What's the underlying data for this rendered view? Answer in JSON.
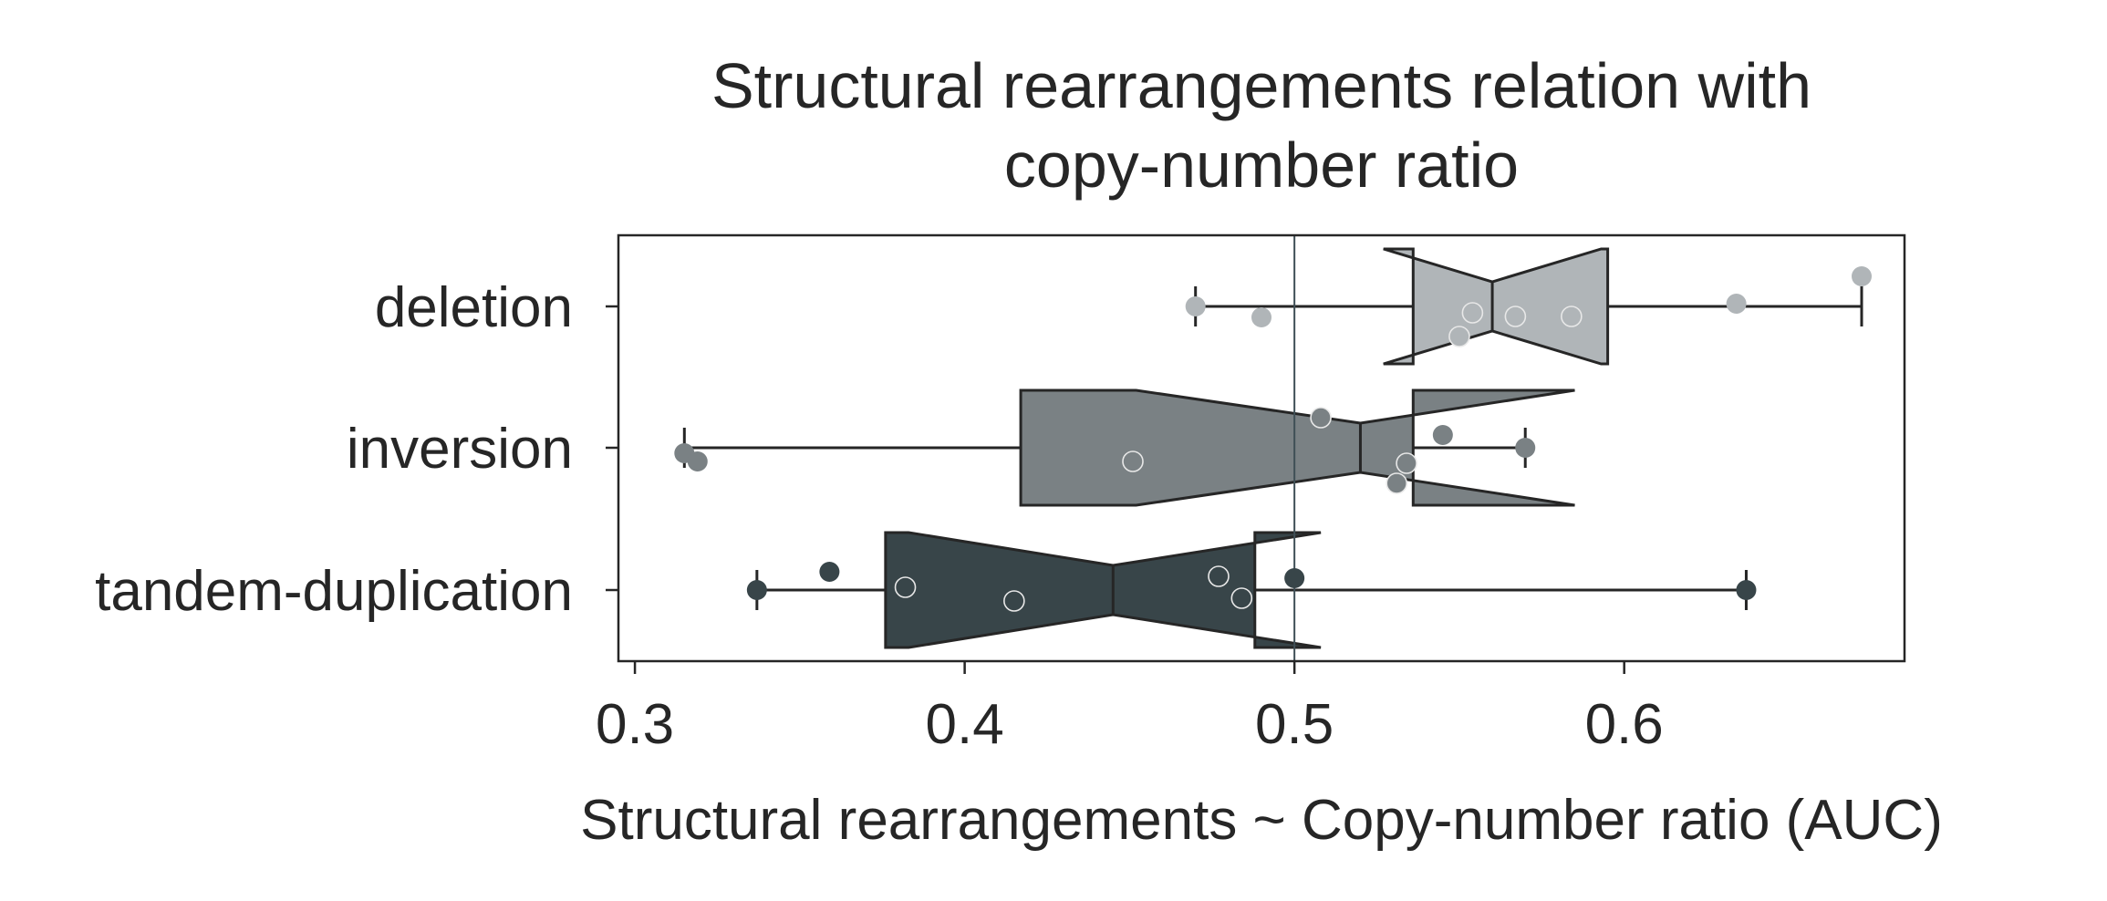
{
  "chart_data": {
    "type": "boxplot",
    "orientation": "horizontal",
    "notched": true,
    "title": "Structural rearrangements relation with copy-number ratio",
    "title_lines": [
      "Structural rearrangements relation with",
      "copy-number ratio"
    ],
    "xlabel": "Structural rearrangements ~ Copy-number ratio (AUC)",
    "ylabel": "",
    "xlim": [
      0.295,
      0.685
    ],
    "xticks": [
      0.3,
      0.4,
      0.5,
      0.6
    ],
    "xtick_labels": [
      "0.3",
      "0.4",
      "0.5",
      "0.6"
    ],
    "reference_line": 0.5,
    "grid": false,
    "legend": "none",
    "categories": [
      "deletion",
      "inversion",
      "tandem-duplication"
    ],
    "series": [
      {
        "category": "deletion",
        "color": "#b0b5b8",
        "box": {
          "whisker_low": 0.47,
          "q1": 0.536,
          "median": 0.56,
          "q3": 0.595,
          "whisker_high": 0.672,
          "notch_low": 0.527,
          "notch_high": 0.593
        },
        "points": [
          {
            "x": 0.47,
            "y": 0.0
          },
          {
            "x": 0.49,
            "y": 0.12
          },
          {
            "x": 0.55,
            "y": 0.33
          },
          {
            "x": 0.554,
            "y": 0.07
          },
          {
            "x": 0.567,
            "y": 0.11
          },
          {
            "x": 0.584,
            "y": 0.11
          },
          {
            "x": 0.634,
            "y": -0.03
          },
          {
            "x": 0.672,
            "y": -0.33
          }
        ]
      },
      {
        "category": "inversion",
        "color": "#7a8184",
        "box": {
          "whisker_low": 0.315,
          "q1": 0.417,
          "median": 0.52,
          "q3": 0.536,
          "whisker_high": 0.57,
          "notch_low": 0.452,
          "notch_high": 0.585
        },
        "points": [
          {
            "x": 0.315,
            "y": 0.06
          },
          {
            "x": 0.319,
            "y": 0.15
          },
          {
            "x": 0.451,
            "y": 0.15
          },
          {
            "x": 0.508,
            "y": -0.33
          },
          {
            "x": 0.531,
            "y": 0.39
          },
          {
            "x": 0.534,
            "y": 0.17
          },
          {
            "x": 0.545,
            "y": -0.14
          },
          {
            "x": 0.57,
            "y": 0.0
          }
        ]
      },
      {
        "category": "tandem-duplication",
        "color": "#384549",
        "box": {
          "whisker_low": 0.337,
          "q1": 0.376,
          "median": 0.445,
          "q3": 0.488,
          "whisker_high": 0.637,
          "notch_low": 0.383,
          "notch_high": 0.508
        },
        "points": [
          {
            "x": 0.337,
            "y": 0.0
          },
          {
            "x": 0.359,
            "y": -0.2
          },
          {
            "x": 0.382,
            "y": -0.03
          },
          {
            "x": 0.415,
            "y": 0.12
          },
          {
            "x": 0.477,
            "y": -0.15
          },
          {
            "x": 0.484,
            "y": 0.09
          },
          {
            "x": 0.5,
            "y": -0.13
          },
          {
            "x": 0.637,
            "y": 0.0
          }
        ]
      }
    ]
  }
}
